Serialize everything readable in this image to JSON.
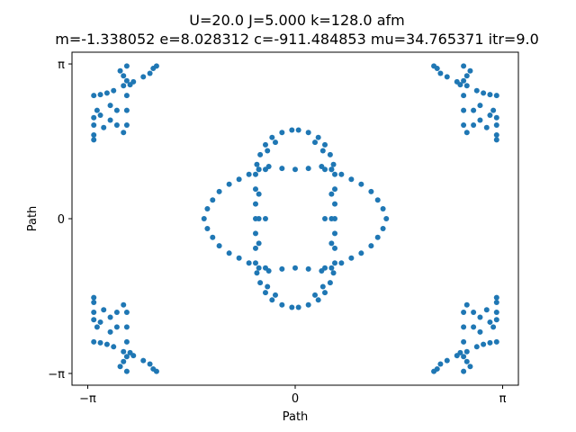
{
  "chart_data": {
    "type": "scatter",
    "title": "U=20.0 J=5.000 k=128.0  afm",
    "subtitle": "m=-1.338052 e=8.028312 c=-911.484853 mu=34.765371 itr=9.0",
    "xlabel": "Path",
    "ylabel": "Path",
    "xlim": [
      -3.38,
      3.38
    ],
    "ylim": [
      -3.38,
      3.38
    ],
    "x_ticks": [
      {
        "value": -3.14159,
        "label": "−π"
      },
      {
        "value": 0,
        "label": "0"
      },
      {
        "value": 3.14159,
        "label": "π"
      }
    ],
    "y_ticks": [
      {
        "value": -3.14159,
        "label": "−π"
      },
      {
        "value": 0,
        "label": "0"
      },
      {
        "value": 3.14159,
        "label": "π"
      }
    ],
    "grid": false,
    "marker_color": "#1f77b4",
    "series": [
      {
        "points": [
          [
            -0.05,
            1.8
          ],
          [
            0.05,
            1.8
          ],
          [
            -0.2,
            1.75
          ],
          [
            0.2,
            1.75
          ],
          [
            -0.35,
            1.65
          ],
          [
            0.35,
            1.65
          ],
          [
            -0.45,
            1.5
          ],
          [
            0.45,
            1.5
          ],
          [
            -0.53,
            1.3
          ],
          [
            0.53,
            1.3
          ],
          [
            -0.58,
            1.1
          ],
          [
            0.58,
            1.1
          ],
          [
            -0.6,
            0.9
          ],
          [
            0.6,
            0.9
          ],
          [
            -0.6,
            0.6
          ],
          [
            0.6,
            0.6
          ],
          [
            -0.6,
            0.3
          ],
          [
            0.6,
            0.3
          ],
          [
            -0.6,
            0.0
          ],
          [
            0.6,
            0.0
          ],
          [
            -0.6,
            -0.3
          ],
          [
            0.6,
            -0.3
          ],
          [
            -0.6,
            -0.6
          ],
          [
            0.6,
            -0.6
          ],
          [
            -0.6,
            -0.9
          ],
          [
            0.6,
            -0.9
          ],
          [
            -0.58,
            -1.1
          ],
          [
            0.58,
            -1.1
          ],
          [
            -0.53,
            -1.3
          ],
          [
            0.53,
            -1.3
          ],
          [
            -0.45,
            -1.5
          ],
          [
            0.45,
            -1.5
          ],
          [
            -0.35,
            -1.65
          ],
          [
            0.35,
            -1.65
          ],
          [
            -0.2,
            -1.75
          ],
          [
            0.2,
            -1.75
          ],
          [
            -0.05,
            -1.8
          ],
          [
            0.05,
            -1.8
          ],
          [
            -0.3,
            1.55
          ],
          [
            0.3,
            1.55
          ],
          [
            -0.42,
            1.38
          ],
          [
            0.42,
            1.38
          ],
          [
            -0.3,
            -1.55
          ],
          [
            0.3,
            -1.55
          ],
          [
            -0.42,
            -1.38
          ],
          [
            0.42,
            -1.38
          ],
          [
            -0.55,
            1.0
          ],
          [
            -0.55,
            0.5
          ],
          [
            -0.55,
            0.0
          ],
          [
            -0.55,
            -0.5
          ],
          [
            -0.55,
            -1.0
          ],
          [
            0.55,
            1.0
          ],
          [
            0.55,
            0.5
          ],
          [
            0.55,
            0.0
          ],
          [
            0.55,
            -0.5
          ],
          [
            0.55,
            -1.0
          ],
          [
            -0.45,
            1.0
          ],
          [
            -0.45,
            0.0
          ],
          [
            -0.45,
            -1.0
          ],
          [
            0.45,
            1.0
          ],
          [
            0.45,
            0.0
          ],
          [
            0.45,
            -1.0
          ],
          [
            0.0,
            1.0
          ],
          [
            -0.2,
            1.02
          ],
          [
            0.2,
            1.02
          ],
          [
            -0.4,
            1.06
          ],
          [
            0.4,
            1.06
          ],
          [
            -0.55,
            1.0
          ],
          [
            0.55,
            1.0
          ],
          [
            -0.7,
            0.9
          ],
          [
            0.7,
            0.9
          ],
          [
            -0.85,
            0.8
          ],
          [
            0.85,
            0.8
          ],
          [
            -1.0,
            0.7
          ],
          [
            1.0,
            0.7
          ],
          [
            -1.15,
            0.55
          ],
          [
            1.15,
            0.55
          ],
          [
            -1.25,
            0.38
          ],
          [
            1.25,
            0.38
          ],
          [
            -1.33,
            0.2
          ],
          [
            1.33,
            0.2
          ],
          [
            -1.38,
            0.0
          ],
          [
            1.38,
            0.0
          ],
          [
            -1.33,
            -0.2
          ],
          [
            1.33,
            -0.2
          ],
          [
            -1.25,
            -0.38
          ],
          [
            1.25,
            -0.38
          ],
          [
            -1.15,
            -0.55
          ],
          [
            1.15,
            -0.55
          ],
          [
            -1.0,
            -0.7
          ],
          [
            1.0,
            -0.7
          ],
          [
            -0.85,
            -0.8
          ],
          [
            0.85,
            -0.8
          ],
          [
            -0.7,
            -0.9
          ],
          [
            0.7,
            -0.9
          ],
          [
            -0.4,
            -1.06
          ],
          [
            0.4,
            -1.06
          ],
          [
            -0.2,
            -1.02
          ],
          [
            0.2,
            -1.02
          ],
          [
            0.0,
            -1.0
          ],
          [
            -2.55,
            3.1
          ],
          [
            -2.55,
            2.8
          ],
          [
            -2.55,
            2.5
          ],
          [
            -2.55,
            2.2
          ],
          [
            -2.55,
            1.9
          ],
          [
            -2.6,
            1.75
          ],
          [
            -2.7,
            1.9
          ],
          [
            -2.7,
            2.2
          ],
          [
            -2.8,
            2.0
          ],
          [
            -2.8,
            2.3
          ],
          [
            -2.9,
            1.85
          ],
          [
            -2.95,
            2.1
          ],
          [
            -3.0,
            2.2
          ],
          [
            -3.05,
            1.9
          ],
          [
            -3.05,
            1.6
          ],
          [
            -3.05,
            1.7
          ],
          [
            -3.05,
            2.05
          ],
          [
            -3.05,
            2.5
          ],
          [
            -2.95,
            2.52
          ],
          [
            -2.85,
            2.55
          ],
          [
            -2.75,
            2.6
          ],
          [
            -2.6,
            2.7
          ],
          [
            -2.45,
            2.78
          ],
          [
            -2.3,
            2.88
          ],
          [
            -2.2,
            2.95
          ],
          [
            -2.15,
            3.05
          ],
          [
            -2.1,
            3.1
          ],
          [
            -2.65,
            3.0
          ],
          [
            -2.6,
            2.9
          ],
          [
            -2.5,
            2.72
          ],
          [
            2.55,
            3.1
          ],
          [
            2.55,
            2.8
          ],
          [
            2.55,
            2.5
          ],
          [
            2.55,
            2.2
          ],
          [
            2.55,
            1.9
          ],
          [
            2.6,
            1.75
          ],
          [
            2.7,
            1.9
          ],
          [
            2.7,
            2.2
          ],
          [
            2.8,
            2.0
          ],
          [
            2.8,
            2.3
          ],
          [
            2.9,
            1.85
          ],
          [
            2.95,
            2.1
          ],
          [
            3.0,
            2.2
          ],
          [
            3.05,
            1.9
          ],
          [
            3.05,
            1.6
          ],
          [
            3.05,
            1.7
          ],
          [
            3.05,
            2.05
          ],
          [
            3.05,
            2.5
          ],
          [
            2.95,
            2.52
          ],
          [
            2.85,
            2.55
          ],
          [
            2.75,
            2.6
          ],
          [
            2.6,
            2.7
          ],
          [
            2.45,
            2.78
          ],
          [
            2.3,
            2.88
          ],
          [
            2.2,
            2.95
          ],
          [
            2.15,
            3.05
          ],
          [
            2.1,
            3.1
          ],
          [
            2.65,
            3.0
          ],
          [
            2.6,
            2.9
          ],
          [
            2.5,
            2.72
          ],
          [
            -2.55,
            -3.1
          ],
          [
            -2.55,
            -2.8
          ],
          [
            -2.55,
            -2.5
          ],
          [
            -2.55,
            -2.2
          ],
          [
            -2.55,
            -1.9
          ],
          [
            -2.6,
            -1.75
          ],
          [
            -2.7,
            -1.9
          ],
          [
            -2.7,
            -2.2
          ],
          [
            -2.8,
            -2.0
          ],
          [
            -2.8,
            -2.3
          ],
          [
            -2.9,
            -1.85
          ],
          [
            -2.95,
            -2.1
          ],
          [
            -3.0,
            -2.2
          ],
          [
            -3.05,
            -1.9
          ],
          [
            -3.05,
            -1.6
          ],
          [
            -3.05,
            -1.7
          ],
          [
            -3.05,
            -2.05
          ],
          [
            -3.05,
            -2.5
          ],
          [
            -2.95,
            -2.52
          ],
          [
            -2.85,
            -2.55
          ],
          [
            -2.75,
            -2.6
          ],
          [
            -2.6,
            -2.7
          ],
          [
            -2.45,
            -2.78
          ],
          [
            -2.3,
            -2.88
          ],
          [
            -2.2,
            -2.95
          ],
          [
            -2.15,
            -3.05
          ],
          [
            -2.1,
            -3.1
          ],
          [
            -2.65,
            -3.0
          ],
          [
            -2.6,
            -2.9
          ],
          [
            -2.5,
            -2.72
          ],
          [
            2.55,
            -3.1
          ],
          [
            2.55,
            -2.8
          ],
          [
            2.55,
            -2.5
          ],
          [
            2.55,
            -2.2
          ],
          [
            2.55,
            -1.9
          ],
          [
            2.6,
            -1.75
          ],
          [
            2.7,
            -1.9
          ],
          [
            2.7,
            -2.2
          ],
          [
            2.8,
            -2.0
          ],
          [
            2.8,
            -2.3
          ],
          [
            2.9,
            -1.85
          ],
          [
            2.95,
            -2.1
          ],
          [
            3.0,
            -2.2
          ],
          [
            3.05,
            -1.9
          ],
          [
            3.05,
            -1.6
          ],
          [
            3.05,
            -1.7
          ],
          [
            3.05,
            -2.05
          ],
          [
            3.05,
            -2.5
          ],
          [
            2.95,
            -2.52
          ],
          [
            2.85,
            -2.55
          ],
          [
            2.75,
            -2.6
          ],
          [
            2.6,
            -2.7
          ],
          [
            2.45,
            -2.78
          ],
          [
            2.3,
            -2.88
          ],
          [
            2.2,
            -2.95
          ],
          [
            2.15,
            -3.05
          ],
          [
            2.1,
            -3.1
          ],
          [
            2.65,
            -3.0
          ],
          [
            2.6,
            -2.9
          ],
          [
            2.5,
            -2.72
          ]
        ]
      }
    ]
  }
}
